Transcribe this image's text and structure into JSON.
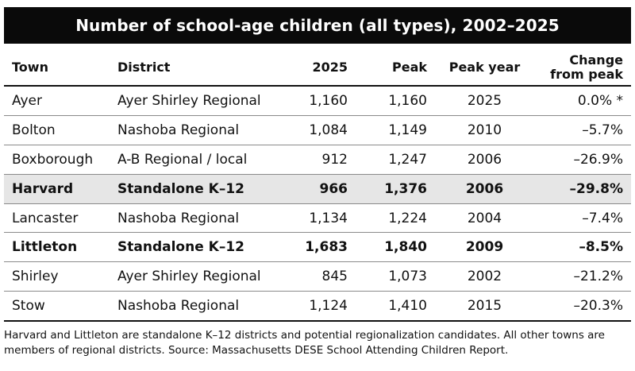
{
  "title": "Number of school-age children (all types), 2002–2025",
  "columns": [
    "Town",
    "District",
    "2025",
    "Peak",
    "Peak year",
    "Change from peak"
  ],
  "rows": [
    {
      "town": "Ayer",
      "district": "Ayer Shirley Regional",
      "y2025": "1,160",
      "peak": "1,160",
      "peak_year": "2025",
      "change": "0.0% *",
      "style": "normal"
    },
    {
      "town": "Bolton",
      "district": "Nashoba Regional",
      "y2025": "1,084",
      "peak": "1,149",
      "peak_year": "2010",
      "change": "–5.7%",
      "style": "normal"
    },
    {
      "town": "Boxborough",
      "district": "A-B Regional / local",
      "y2025": "912",
      "peak": "1,247",
      "peak_year": "2006",
      "change": "–26.9%",
      "style": "normal"
    },
    {
      "town": "Harvard",
      "district": "Standalone K–12",
      "y2025": "966",
      "peak": "1,376",
      "peak_year": "2006",
      "change": "–29.8%",
      "style": "bold-highlight"
    },
    {
      "town": "Lancaster",
      "district": "Nashoba Regional",
      "y2025": "1,134",
      "peak": "1,224",
      "peak_year": "2004",
      "change": "–7.4%",
      "style": "normal"
    },
    {
      "town": "Littleton",
      "district": "Standalone K–12",
      "y2025": "1,683",
      "peak": "1,840",
      "peak_year": "2009",
      "change": "–8.5%",
      "style": "bold"
    },
    {
      "town": "Shirley",
      "district": "Ayer Shirley Regional",
      "y2025": "845",
      "peak": "1,073",
      "peak_year": "2002",
      "change": "–21.2%",
      "style": "normal"
    },
    {
      "town": "Stow",
      "district": "Nashoba Regional",
      "y2025": "1,124",
      "peak": "1,410",
      "peak_year": "2015",
      "change": "–20.3%",
      "style": "normal"
    }
  ],
  "footnote": "Harvard and Littleton are standalone K–12 districts and potential regionalization candidates. All other towns are members of regional districts. Source: Massachusetts DESE School Attending Children Report."
}
